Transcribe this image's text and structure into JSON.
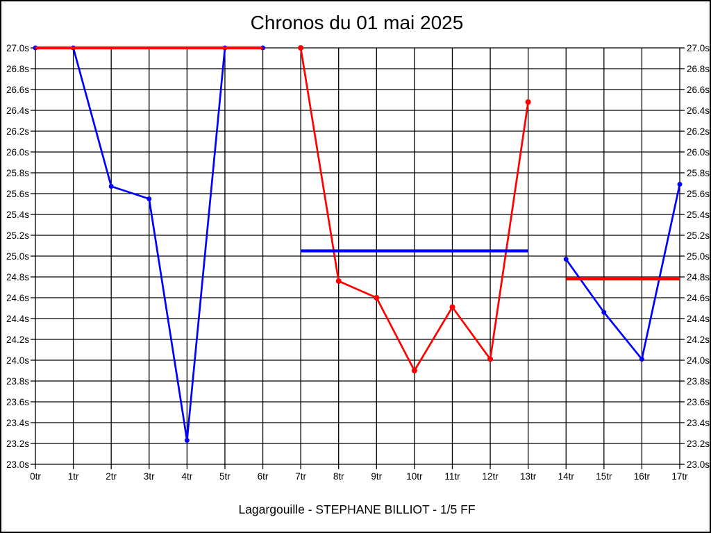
{
  "header": {
    "title": "Chronos du 01 mai 2025"
  },
  "footer": {
    "caption": "Lagargouille - STEPHANE BILLIOT - 1/5 FF"
  },
  "chart_data": {
    "type": "line",
    "title": "Chronos du 01 mai 2025",
    "caption": "Lagargouille - STEPHANE BILLIOT - 1/5 FF",
    "xlabel": "",
    "ylabel": "",
    "x_unit": "tr",
    "y_unit": "s",
    "ylim": [
      23.0,
      27.0
    ],
    "y_tick_step": 0.2,
    "xlim": [
      0,
      17
    ],
    "grid": true,
    "legend_position": "none",
    "colors": {
      "blue": "#0000ff",
      "red": "#ff0000",
      "grid": "#000000",
      "background": "#ffffff"
    },
    "y_ticks": [
      "27.0s",
      "26.8s",
      "26.6s",
      "26.4s",
      "26.2s",
      "26.0s",
      "25.8s",
      "25.6s",
      "25.4s",
      "25.2s",
      "25.0s",
      "24.8s",
      "24.6s",
      "24.4s",
      "24.2s",
      "24.0s",
      "23.8s",
      "23.6s",
      "23.4s",
      "23.2s",
      "23.0s"
    ],
    "x_ticks": [
      "0tr",
      "1tr",
      "2tr",
      "3tr",
      "4tr",
      "5tr",
      "6tr",
      "7tr",
      "8tr",
      "9tr",
      "10tr",
      "11tr",
      "12tr",
      "13tr",
      "14tr",
      "15tr",
      "16tr",
      "17tr"
    ],
    "series": [
      {
        "name": "segment-1-chronos",
        "color": "#0000ff",
        "marker_radius": 3.5,
        "points": [
          [
            0,
            27.0
          ],
          [
            1,
            27.0
          ],
          [
            2,
            25.67
          ],
          [
            3,
            25.55
          ],
          [
            4,
            23.23
          ],
          [
            5,
            27.0
          ],
          [
            6,
            27.0
          ]
        ]
      },
      {
        "name": "segment-2-chronos",
        "color": "#ff0000",
        "marker_radius": 4,
        "points": [
          [
            7,
            27.0
          ],
          [
            8,
            24.76
          ],
          [
            9,
            24.6
          ],
          [
            10,
            23.9
          ],
          [
            11,
            24.51
          ],
          [
            12,
            24.01
          ],
          [
            13,
            26.48
          ]
        ]
      },
      {
        "name": "segment-3-chronos",
        "color": "#0000ff",
        "marker_radius": 3.5,
        "points": [
          [
            14,
            24.97
          ],
          [
            15,
            24.46
          ],
          [
            16,
            24.01
          ],
          [
            17,
            25.69
          ]
        ]
      }
    ],
    "reference_lines": [
      {
        "name": "average-line-segment-1",
        "color": "#ff0000",
        "y": 27.0,
        "x_start": 0,
        "x_end": 6
      },
      {
        "name": "average-line-segment-2",
        "color": "#0000ff",
        "y": 25.05,
        "x_start": 7,
        "x_end": 13
      },
      {
        "name": "average-line-segment-3",
        "color": "#ff0000",
        "y": 24.78,
        "x_start": 14,
        "x_end": 17
      }
    ]
  }
}
